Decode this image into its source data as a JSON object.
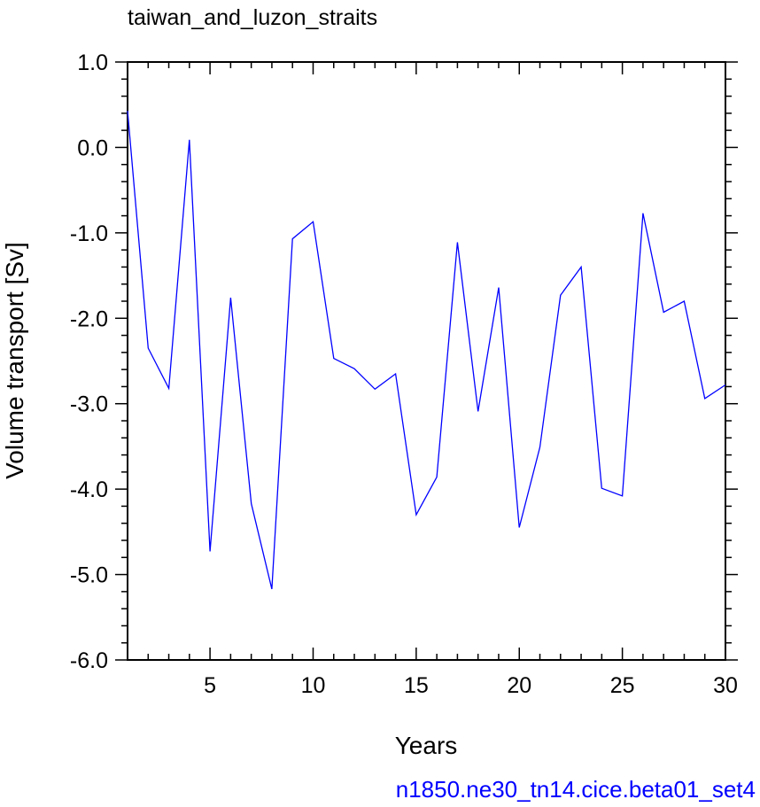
{
  "chart_data": {
    "type": "line",
    "title": "taiwan_and_luzon_straits",
    "xlabel": "Years",
    "ylabel": "Volume transport [Sv]",
    "caption": "n1850.ne30_tn14.cice.beta01_set4",
    "xlim": [
      1,
      30
    ],
    "ylim": [
      -6.0,
      1.0
    ],
    "x_ticks": [
      5,
      10,
      15,
      20,
      25,
      30
    ],
    "x_tick_labels": [
      "5",
      "10",
      "15",
      "20",
      "25",
      "30"
    ],
    "y_ticks": [
      -6.0,
      -5.0,
      -4.0,
      -3.0,
      -2.0,
      -1.0,
      0.0,
      1.0
    ],
    "y_tick_labels": [
      "-6.0",
      "-5.0",
      "-4.0",
      "-3.0",
      "-2.0",
      "-1.0",
      "0.0",
      "1.0"
    ],
    "grid": false,
    "colors": {
      "line": "#0000ff",
      "caption": "#0000ff",
      "axes": "#000000"
    },
    "series": [
      {
        "x": [
          1,
          2,
          3,
          4,
          5,
          6,
          7,
          8,
          9,
          10,
          11,
          12,
          13,
          14,
          15,
          16,
          17,
          18,
          19,
          20,
          21,
          22,
          23,
          24,
          25,
          26,
          27,
          28,
          29,
          30
        ],
        "values": [
          0.43,
          -2.35,
          -2.82,
          0.09,
          -4.73,
          -1.76,
          -4.17,
          -5.17,
          -1.07,
          -0.87,
          -2.47,
          -2.59,
          -2.83,
          -2.65,
          -4.3,
          -3.86,
          -1.11,
          -3.09,
          -1.64,
          -4.45,
          -3.51,
          -1.73,
          -1.4,
          -3.99,
          -4.08,
          -0.77,
          -1.93,
          -1.8,
          -2.94,
          -2.78
        ]
      }
    ]
  }
}
